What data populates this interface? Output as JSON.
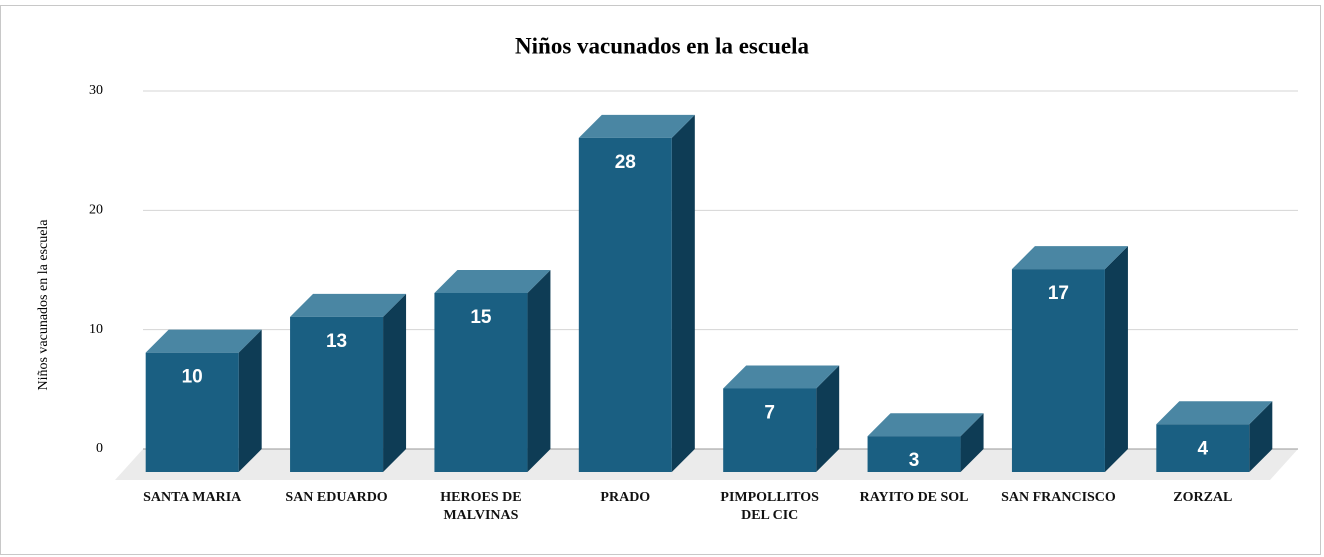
{
  "chart_data": {
    "type": "bar3d",
    "title": "Niños vacunados en la escuela",
    "y_label": "Niños vacunados en la escuela",
    "categories": [
      "SANTA MARIA",
      "SAN EDUARDO",
      "HEROES DE MALVINAS",
      "PRADO",
      "PIMPOLLITOS DEL CIC",
      "RAYITO DE SOL",
      "SAN FRANCISCO",
      "ZORZAL"
    ],
    "values": [
      10,
      13,
      15,
      28,
      7,
      3,
      17,
      4
    ],
    "color": "#1a5f82",
    "top_color": "#4a86a3",
    "side_color": "#0e3c55",
    "ylim": [
      0,
      30
    ],
    "yticks": [
      0,
      10,
      20,
      30
    ],
    "grid": true
  }
}
